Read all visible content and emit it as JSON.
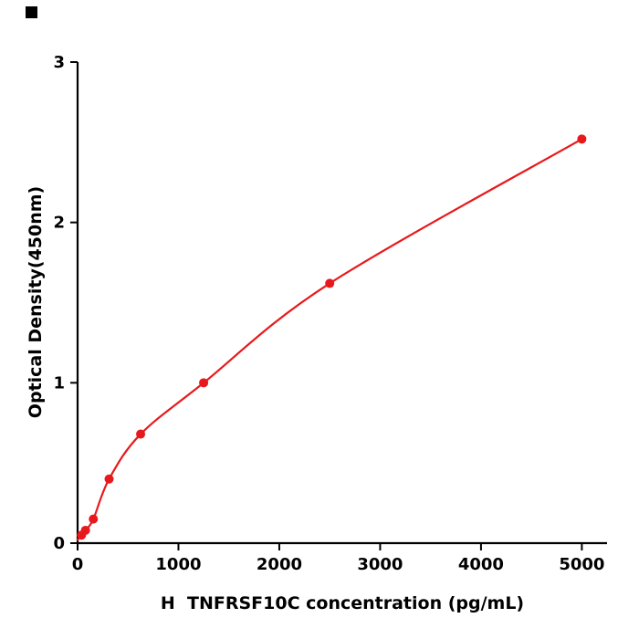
{
  "figure": {
    "background": "#ffffff",
    "corner_mark_color": "#000000"
  },
  "chart_data": {
    "type": "scatter",
    "title": "",
    "xlabel": "H  TNFRSF10C concentration (pg/mL)",
    "ylabel": "Optical Density(450nm)",
    "x": [
      39.1,
      78.1,
      156.2,
      312.5,
      625,
      1250,
      2500,
      5000
    ],
    "y": [
      0.05,
      0.08,
      0.15,
      0.4,
      0.68,
      1.0,
      1.62,
      2.52
    ],
    "curve_start": [
      0,
      0.02
    ],
    "xticks": [
      0,
      1000,
      2000,
      3000,
      4000,
      5000
    ],
    "yticks": [
      0,
      1,
      2,
      3
    ],
    "xlim": [
      0,
      5250
    ],
    "ylim": [
      0,
      3
    ],
    "grid": false,
    "legend": "none",
    "point_color": "#e8191c",
    "line_color": "#e8191c",
    "axis_color": "#000000"
  }
}
